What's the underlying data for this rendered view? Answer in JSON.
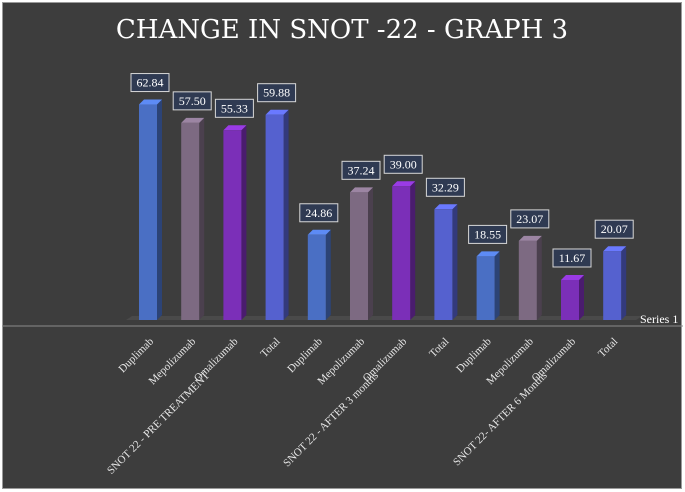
{
  "chart_data": {
    "type": "bar",
    "title": "CHANGE IN SNOT -22 - GRAPH 3",
    "legend": "Series 1",
    "legend_position": "right",
    "grid": false,
    "ylim": [
      0,
      70
    ],
    "groups": [
      {
        "label": "SNOT 22 - PRE TREATMENT",
        "start": 0,
        "end": 3
      },
      {
        "label": "SNOT 22 - AFTER 3 months",
        "start": 4,
        "end": 7
      },
      {
        "label": "SNOT 22- AFTER 6 Months",
        "start": 8,
        "end": 11
      }
    ],
    "categories": [
      "Duplimab",
      "Mepolizumab",
      "Omalizumab",
      "Total",
      "Duplimab",
      "Mepolizumab",
      "Omalizumab",
      "Total",
      "Duplimab",
      "Mepolizumab",
      "Omalizumab",
      "Total"
    ],
    "values": [
      62.84,
      57.5,
      55.33,
      59.88,
      24.86,
      37.24,
      39.0,
      32.29,
      18.55,
      23.07,
      11.67,
      20.07
    ],
    "value_labels": [
      "62.84",
      "57.50",
      "55.33",
      "59.88",
      "24.86",
      "37.24",
      "39.00",
      "32.29",
      "18.55",
      "23.07",
      "11.67",
      "20.07"
    ],
    "colors": [
      "#4a6fc4",
      "#7d6a82",
      "#7b2fb8",
      "#5561cf",
      "#4a6fc4",
      "#7d6a82",
      "#7b2fb8",
      "#5561cf",
      "#4a6fc4",
      "#7d6a82",
      "#7b2fb8",
      "#5561cf"
    ]
  }
}
